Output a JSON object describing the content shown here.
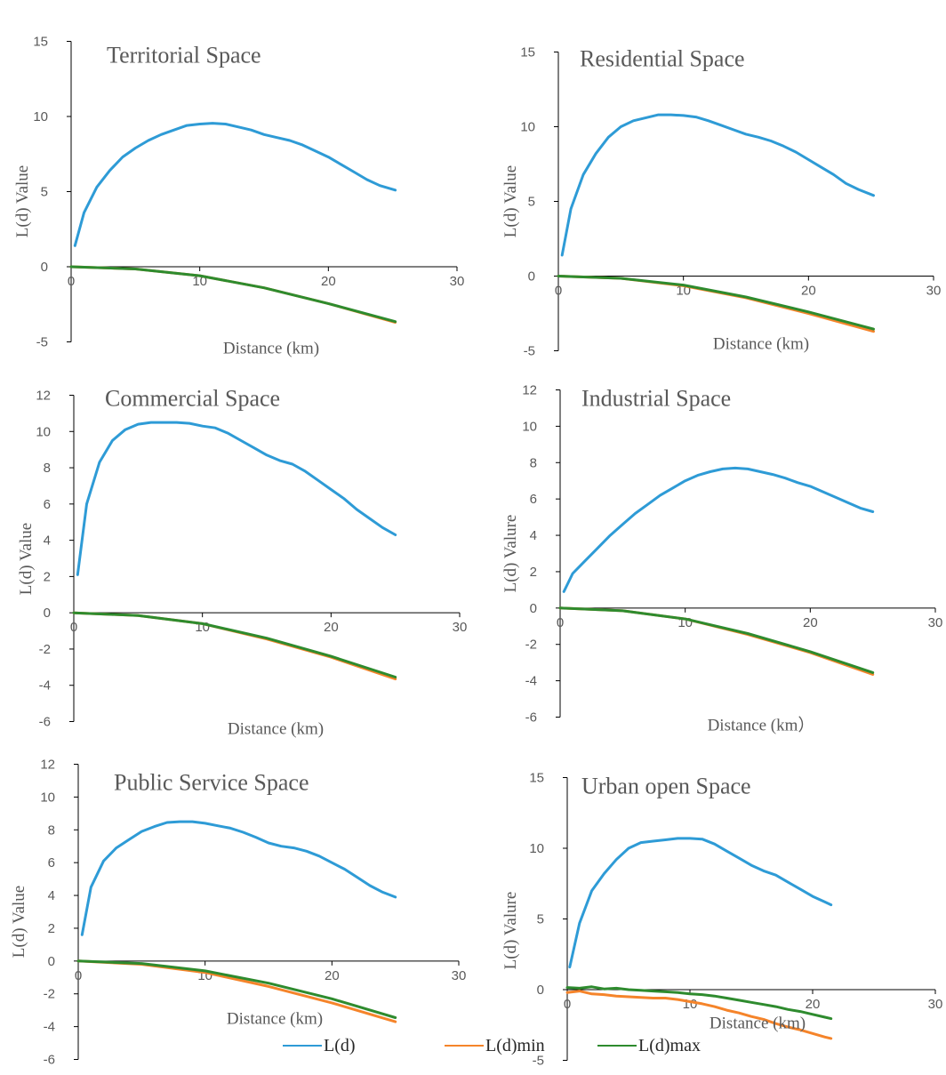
{
  "colors": {
    "L": "#2E9BD6",
    "Lmin": "#F5842A",
    "Lmax": "#2E8B2E"
  },
  "legend": [
    {
      "key": "L",
      "label": "L(d)"
    },
    {
      "key": "Lmin",
      "label": "L(d)min"
    },
    {
      "key": "Lmax",
      "label": "L(d)max"
    }
  ],
  "chart_data": [
    {
      "type": "line",
      "title": "Territorial Space",
      "xlabel": "Distance (km)",
      "ylabel": "L(d) Value",
      "xlim": [
        0,
        30
      ],
      "ylim": [
        -5,
        15
      ],
      "xticks": [
        0,
        10,
        20,
        30
      ],
      "yticks": [
        -5,
        0,
        5,
        10,
        15
      ],
      "series": [
        {
          "key": "L",
          "name": "L(d)",
          "x": [
            0.3,
            1,
            2,
            3,
            4,
            5,
            6,
            7,
            8,
            9,
            10,
            11,
            12,
            13,
            14,
            15,
            16,
            17,
            18,
            19,
            20,
            21,
            22,
            23,
            24,
            25.2
          ],
          "y": [
            1.4,
            3.6,
            5.3,
            6.4,
            7.3,
            7.9,
            8.4,
            8.8,
            9.1,
            9.4,
            9.5,
            9.55,
            9.5,
            9.3,
            9.1,
            8.8,
            8.6,
            8.4,
            8.1,
            7.7,
            7.3,
            6.8,
            6.3,
            5.8,
            5.4,
            5.1
          ]
        },
        {
          "key": "Lmin",
          "name": "L(d)min",
          "x": [
            0,
            5,
            10,
            15,
            20,
            25.2
          ],
          "y": [
            0,
            -0.15,
            -0.6,
            -1.4,
            -2.45,
            -3.7
          ]
        },
        {
          "key": "Lmax",
          "name": "L(d)max",
          "x": [
            0,
            5,
            10,
            15,
            20,
            25.2
          ],
          "y": [
            0,
            -0.15,
            -0.6,
            -1.4,
            -2.45,
            -3.65
          ]
        }
      ]
    },
    {
      "type": "line",
      "title": "Residential Space",
      "xlabel": "Distance (km)",
      "ylabel": "L(d) Value",
      "xlim": [
        0,
        30
      ],
      "ylim": [
        -5,
        15
      ],
      "xticks": [
        0,
        10,
        20,
        30
      ],
      "yticks": [
        -5,
        0,
        5,
        10,
        15
      ],
      "series": [
        {
          "key": "L",
          "name": "L(d)",
          "x": [
            0.3,
            1,
            2,
            3,
            4,
            5,
            6,
            7,
            8,
            9,
            10,
            11,
            12,
            13,
            14,
            15,
            16,
            17,
            18,
            19,
            20,
            21,
            22,
            23,
            24,
            25.2
          ],
          "y": [
            1.4,
            4.5,
            6.8,
            8.2,
            9.3,
            10.0,
            10.4,
            10.6,
            10.8,
            10.8,
            10.75,
            10.65,
            10.4,
            10.1,
            9.8,
            9.5,
            9.3,
            9.05,
            8.7,
            8.3,
            7.8,
            7.3,
            6.8,
            6.2,
            5.8,
            5.4
          ]
        },
        {
          "key": "Lmin",
          "name": "L(d)min",
          "x": [
            0,
            5,
            10,
            15,
            20,
            25.2
          ],
          "y": [
            0,
            -0.15,
            -0.65,
            -1.45,
            -2.5,
            -3.7
          ]
        },
        {
          "key": "Lmax",
          "name": "L(d)max",
          "x": [
            0,
            5,
            10,
            15,
            20,
            25.2
          ],
          "y": [
            0,
            -0.15,
            -0.6,
            -1.4,
            -2.4,
            -3.55
          ]
        }
      ]
    },
    {
      "type": "line",
      "title": "Commercial Space",
      "xlabel": "Distance (km)",
      "ylabel": "L(d) Value",
      "xlim": [
        0,
        30
      ],
      "ylim": [
        -6,
        12
      ],
      "xticks": [
        0,
        10,
        20,
        30
      ],
      "yticks": [
        -6,
        -4,
        -2,
        0,
        2,
        4,
        6,
        8,
        10,
        12
      ],
      "series": [
        {
          "key": "L",
          "name": "L(d)",
          "x": [
            0.3,
            1,
            2,
            3,
            4,
            5,
            6,
            7,
            8,
            9,
            10,
            11,
            12,
            13,
            14,
            15,
            16,
            17,
            18,
            19,
            20,
            21,
            22,
            23,
            24,
            25
          ],
          "y": [
            2.1,
            6.0,
            8.3,
            9.5,
            10.1,
            10.4,
            10.5,
            10.5,
            10.5,
            10.45,
            10.3,
            10.2,
            9.9,
            9.5,
            9.1,
            8.7,
            8.4,
            8.2,
            7.8,
            7.3,
            6.8,
            6.3,
            5.7,
            5.2,
            4.7,
            4.3
          ]
        },
        {
          "key": "Lmin",
          "name": "L(d)min",
          "x": [
            0,
            5,
            10,
            15,
            20,
            25
          ],
          "y": [
            0,
            -0.15,
            -0.6,
            -1.45,
            -2.45,
            -3.65
          ]
        },
        {
          "key": "Lmax",
          "name": "L(d)max",
          "x": [
            0,
            5,
            10,
            15,
            20,
            25
          ],
          "y": [
            0,
            -0.15,
            -0.6,
            -1.4,
            -2.4,
            -3.55
          ]
        }
      ]
    },
    {
      "type": "line",
      "title": "Industrial Space",
      "xlabel": "Distance (km）",
      "ylabel": "L(d) Valure",
      "xlim": [
        0,
        30
      ],
      "ylim": [
        -6,
        12
      ],
      "xticks": [
        0,
        10,
        20,
        30
      ],
      "yticks": [
        -6,
        -4,
        -2,
        0,
        2,
        4,
        6,
        8,
        10,
        12
      ],
      "series": [
        {
          "key": "L",
          "name": "L(d)",
          "x": [
            0.3,
            1,
            2,
            3,
            4,
            5,
            6,
            7,
            8,
            9,
            10,
            11,
            12,
            13,
            14,
            15,
            16,
            17,
            18,
            19,
            20,
            21,
            22,
            23,
            24,
            25
          ],
          "y": [
            0.9,
            1.9,
            2.6,
            3.3,
            4.0,
            4.6,
            5.2,
            5.7,
            6.2,
            6.6,
            7.0,
            7.3,
            7.5,
            7.65,
            7.7,
            7.65,
            7.5,
            7.35,
            7.15,
            6.9,
            6.7,
            6.4,
            6.1,
            5.8,
            5.5,
            5.3
          ]
        },
        {
          "key": "Lmin",
          "name": "L(d)min",
          "x": [
            0,
            5,
            10,
            15,
            20,
            25
          ],
          "y": [
            0,
            -0.15,
            -0.6,
            -1.45,
            -2.45,
            -3.65
          ]
        },
        {
          "key": "Lmax",
          "name": "L(d)max",
          "x": [
            0,
            5,
            10,
            15,
            20,
            25
          ],
          "y": [
            0,
            -0.15,
            -0.6,
            -1.4,
            -2.4,
            -3.55
          ]
        }
      ]
    },
    {
      "type": "line",
      "title": "Public Service Space",
      "xlabel": "Distance (km)",
      "ylabel": "L(d) Value",
      "xlim": [
        0,
        30
      ],
      "ylim": [
        -6,
        12
      ],
      "xticks": [
        0,
        10,
        20,
        30
      ],
      "yticks": [
        -6,
        -4,
        -2,
        0,
        2,
        4,
        6,
        8,
        10,
        12
      ],
      "series": [
        {
          "key": "L",
          "name": "L(d)",
          "x": [
            0.3,
            1,
            2,
            3,
            4,
            5,
            6,
            7,
            8,
            9,
            10,
            11,
            12,
            13,
            14,
            15,
            16,
            17,
            18,
            19,
            20,
            21,
            22,
            23,
            24,
            25
          ],
          "y": [
            1.6,
            4.5,
            6.1,
            6.9,
            7.4,
            7.9,
            8.2,
            8.45,
            8.5,
            8.5,
            8.4,
            8.25,
            8.1,
            7.85,
            7.55,
            7.2,
            7.0,
            6.9,
            6.7,
            6.4,
            6.0,
            5.6,
            5.1,
            4.6,
            4.2,
            3.9
          ]
        },
        {
          "key": "Lmin",
          "name": "L(d)min",
          "x": [
            0,
            5,
            10,
            15,
            20,
            25
          ],
          "y": [
            0,
            -0.2,
            -0.7,
            -1.55,
            -2.55,
            -3.7
          ]
        },
        {
          "key": "Lmax",
          "name": "L(d)max",
          "x": [
            0,
            5,
            10,
            15,
            20,
            25
          ],
          "y": [
            0,
            -0.15,
            -0.6,
            -1.35,
            -2.3,
            -3.45
          ]
        }
      ]
    },
    {
      "type": "line",
      "title": "Urban open Space",
      "xlabel": "Distance (km)",
      "ylabel": "L(d) Valure",
      "xlim": [
        0,
        30
      ],
      "ylim": [
        -5,
        15
      ],
      "xticks": [
        0,
        10,
        20,
        30
      ],
      "yticks": [
        -5,
        0,
        5,
        10,
        15
      ],
      "series": [
        {
          "key": "L",
          "name": "L(d)",
          "x": [
            0.2,
            1,
            2,
            3,
            4,
            5,
            6,
            7,
            8,
            9,
            10,
            11,
            12,
            13,
            14,
            15,
            16,
            17,
            18,
            19,
            20,
            21,
            21.5
          ],
          "y": [
            1.6,
            4.7,
            7.0,
            8.2,
            9.2,
            10.0,
            10.4,
            10.5,
            10.6,
            10.7,
            10.7,
            10.65,
            10.3,
            9.8,
            9.3,
            8.8,
            8.4,
            8.1,
            7.6,
            7.1,
            6.6,
            6.2,
            6.0
          ]
        },
        {
          "key": "Lmin",
          "name": "L(d)min",
          "x": [
            0,
            1,
            2,
            3,
            4,
            5,
            6,
            7,
            8,
            9,
            10,
            11,
            12,
            13,
            14,
            15,
            16,
            17,
            18,
            19,
            20,
            21,
            21.5
          ],
          "y": [
            -0.2,
            -0.1,
            -0.3,
            -0.35,
            -0.45,
            -0.5,
            -0.55,
            -0.6,
            -0.6,
            -0.7,
            -0.85,
            -1.0,
            -1.2,
            -1.45,
            -1.65,
            -1.9,
            -2.1,
            -2.4,
            -2.65,
            -2.85,
            -3.1,
            -3.35,
            -3.45
          ]
        },
        {
          "key": "Lmax",
          "name": "L(d)max",
          "x": [
            0,
            1,
            2,
            3,
            4,
            5,
            6,
            7,
            8,
            9,
            10,
            11,
            12,
            13,
            14,
            15,
            16,
            17,
            18,
            19,
            20,
            21,
            21.5
          ],
          "y": [
            0.15,
            0.1,
            0.2,
            0.05,
            0.1,
            0.0,
            -0.05,
            -0.1,
            -0.15,
            -0.2,
            -0.3,
            -0.35,
            -0.45,
            -0.6,
            -0.75,
            -0.9,
            -1.05,
            -1.2,
            -1.4,
            -1.55,
            -1.75,
            -1.95,
            -2.05
          ]
        }
      ]
    }
  ]
}
